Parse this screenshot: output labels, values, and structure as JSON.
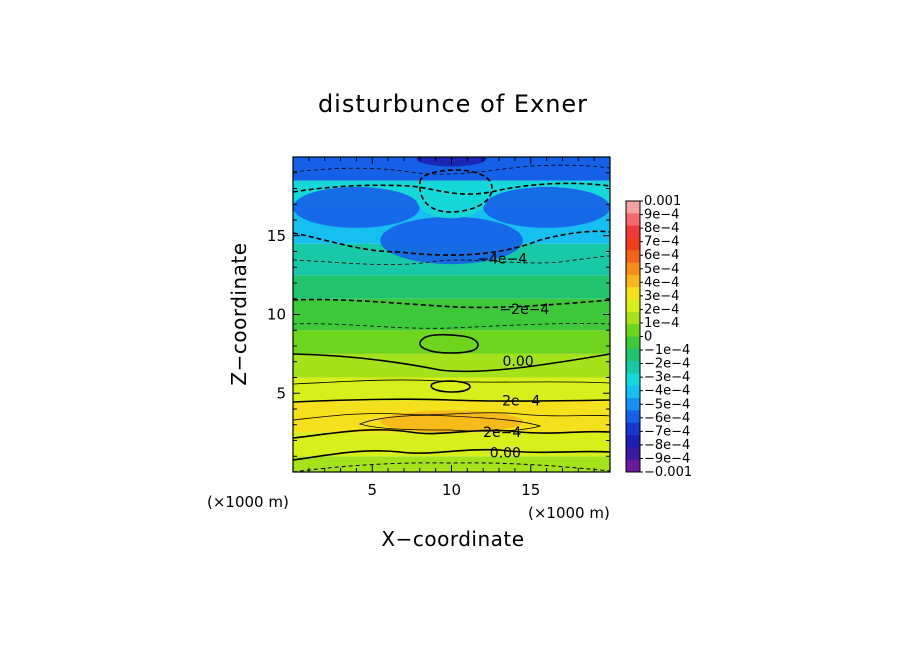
{
  "chart_data": {
    "type": "heatmap",
    "title": "disturbunce of Exner",
    "xlabel": "X−coordinate",
    "ylabel": "Z−coordinate",
    "x_unit_label": "(×1000 m)",
    "y_unit_label": "(×1000 m)",
    "xlim": [
      0,
      20
    ],
    "ylim": [
      0,
      20
    ],
    "x_ticks": [
      5,
      10,
      15
    ],
    "y_ticks": [
      5,
      10,
      15
    ],
    "colorbar": {
      "range": [
        -0.001,
        0.001
      ],
      "labels": [
        "0.001",
        "9e−4",
        "8e−4",
        "7e−4",
        "6e−4",
        "5e−4",
        "4e−4",
        "3e−4",
        "2e−4",
        "1e−4",
        "0",
        "−1e−4",
        "−2e−4",
        "−3e−4",
        "−4e−4",
        "−5e−4",
        "−6e−4",
        "−7e−4",
        "−8e−4",
        "−9e−4",
        "−0.001"
      ],
      "colors": [
        "#f4a3a3",
        "#f26a6a",
        "#ee3a3a",
        "#ef3c1c",
        "#f2621a",
        "#f58d1a",
        "#f7b61c",
        "#f4e01c",
        "#d9ef1c",
        "#a5e21c",
        "#6fd41e",
        "#3ec93a",
        "#22c36e",
        "#18c8a6",
        "#17d8d8",
        "#16bff0",
        "#1690f0",
        "#1660e8",
        "#1438d0",
        "#1a20b0",
        "#3a1aa0",
        "#6a1a9a"
      ]
    },
    "bands": [
      {
        "z": [
          0,
          1
        ],
        "value": 0.00015
      },
      {
        "z": [
          1,
          2.5
        ],
        "value": 0.00025
      },
      {
        "z": [
          2.5,
          4.5
        ],
        "value": 0.00035
      },
      {
        "z": [
          4.5,
          6
        ],
        "value": 0.00025
      },
      {
        "z": [
          6,
          7.5
        ],
        "value": 0.00015
      },
      {
        "z": [
          7.5,
          9
        ],
        "value": 5e-05
      },
      {
        "z": [
          9,
          11
        ],
        "value": -5e-05
      },
      {
        "z": [
          11,
          12.5
        ],
        "value": -0.00015
      },
      {
        "z": [
          12.5,
          14.5
        ],
        "value": -0.00025
      },
      {
        "z": [
          14.5,
          17
        ],
        "value": -0.00045
      },
      {
        "z": [
          17,
          18.5
        ],
        "value": -0.00035
      },
      {
        "z": [
          18.5,
          20
        ],
        "value": -0.00055
      }
    ],
    "features": [
      {
        "x": 10,
        "z": 8.1,
        "rx": 1.7,
        "rz": 0.6,
        "value": 5e-05
      },
      {
        "x": 10,
        "z": 5.4,
        "rx": 1.1,
        "rz": 0.3,
        "value": 0.00025
      },
      {
        "x": 10,
        "z": 3.2,
        "rx": 4.5,
        "rz": 0.7,
        "value": 0.00045
      },
      {
        "x": 10,
        "z": 14.7,
        "rx": 4.5,
        "rz": 1.5,
        "value": -0.00055
      },
      {
        "x": 4,
        "z": 16.8,
        "rx": 4,
        "rz": 1.3,
        "value": -0.00055
      },
      {
        "x": 16,
        "z": 16.8,
        "rx": 4,
        "rz": 1.3,
        "value": -0.00055
      },
      {
        "x": 10,
        "z": 17.3,
        "rx": 2.2,
        "rz": 1.2,
        "value": -0.00035
      },
      {
        "x": 10,
        "z": 19.9,
        "rx": 2.2,
        "rz": 0.5,
        "value": -0.00075
      }
    ],
    "contour_labels": [
      {
        "text": "−4e−4",
        "x": 13.2,
        "z": 13.3
      },
      {
        "text": "−2e−4",
        "x": 14.6,
        "z": 10.1
      },
      {
        "text": "0.00",
        "x": 14.2,
        "z": 6.8
      },
      {
        "text": "2e−4",
        "x": 14.4,
        "z": 4.3
      },
      {
        "text": "2e−4",
        "x": 13.2,
        "z": 2.3
      },
      {
        "text": "0.00",
        "x": 13.4,
        "z": 1.0
      }
    ]
  }
}
